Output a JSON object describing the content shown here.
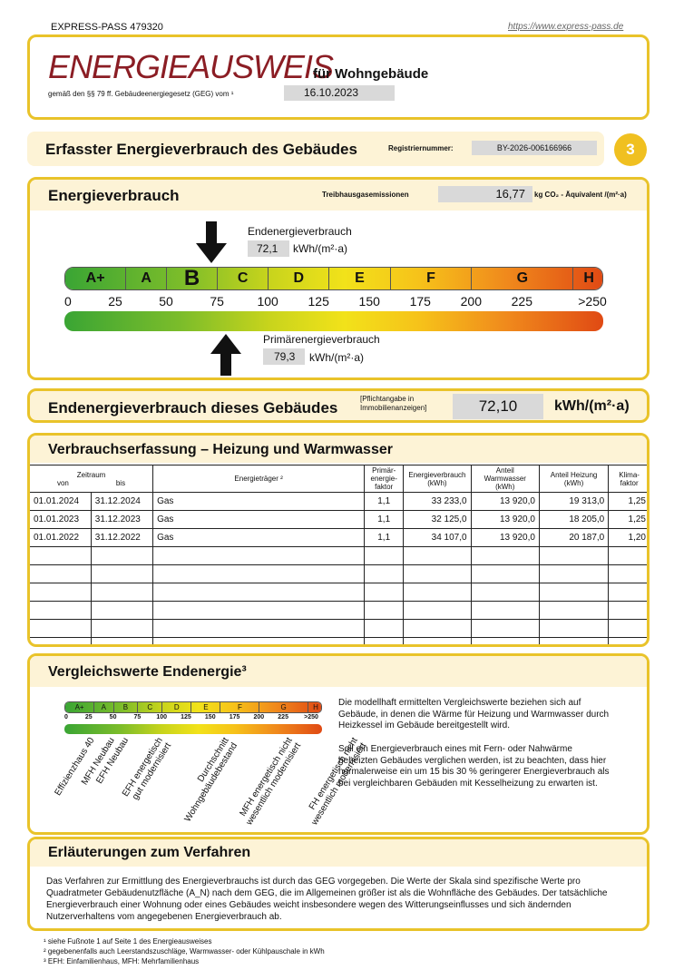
{
  "header": {
    "left": "EXPRESS-PASS 479320",
    "url": "https://www.express-pass.de"
  },
  "title": {
    "main": "ENERGIEAUSWEIS",
    "sub": "für Wohngebäude",
    "law": "gemäß den §§ 79 ff. Gebäudeenergiegesetz (GEG) vom ¹",
    "date": "16.10.2023"
  },
  "section": {
    "title": "Erfasster Energieverbrauch des Gebäudes",
    "reg_label": "Registriernummer:",
    "reg_value": "BY-2026-006166966",
    "page": "3"
  },
  "energy": {
    "title": "Energieverbrauch",
    "ghg_label": "Treibhausgasemissionen",
    "ghg_value": "16,77",
    "ghg_unit": "kg CO₂ - Äquivalent  /(m²·a)",
    "end_label": "Endenergieverbrauch",
    "end_value": "72,1",
    "unit": "kWh/(m²·a)",
    "prim_label": "Primärenergieverbrauch",
    "prim_value": "79,3",
    "end_numeric": 72.1,
    "prim_numeric": 79.3,
    "current_class": "B",
    "classes": [
      "A+",
      "A",
      "B",
      "C",
      "D",
      "E",
      "F",
      "G",
      "H"
    ],
    "ticks": [
      "0",
      "25",
      "50",
      "75",
      "100",
      "125",
      "150",
      "175",
      "200",
      "225",
      ">250"
    ]
  },
  "summary": {
    "label": "Endenergieverbrauch dieses Gebäudes",
    "note": "[Pflichtangabe in Immobilienanzeigen]",
    "value": "72,10",
    "unit": "kWh/(m²·a)"
  },
  "consumption": {
    "title": "Verbrauchserfassung – Heizung und Warmwasser",
    "headers": {
      "period": "Zeitraum",
      "from": "von",
      "to": "bis",
      "carrier": "Energieträger ²",
      "pef": "Primär-energie-faktor",
      "usage": "Energieverbrauch (kWh)",
      "ww": "Anteil Warmwasser (kWh)",
      "heat": "Anteil Heizung (kWh)",
      "climate": "Klima-faktor"
    },
    "rows": [
      [
        "01.01.2024",
        "31.12.2024",
        "Gas",
        "1,1",
        "33 233,0",
        "13 920,0",
        "19 313,0",
        "1,25"
      ],
      [
        "01.01.2023",
        "31.12.2023",
        "Gas",
        "1,1",
        "32 125,0",
        "13 920,0",
        "18 205,0",
        "1,25"
      ],
      [
        "01.01.2022",
        "31.12.2022",
        "Gas",
        "1,1",
        "34 107,0",
        "13 920,0",
        "20 187,0",
        "1,20"
      ],
      [
        "",
        "",
        "",
        "",
        "",
        "",
        "",
        ""
      ],
      [
        "",
        "",
        "",
        "",
        "",
        "",
        "",
        ""
      ],
      [
        "",
        "",
        "",
        "",
        "",
        "",
        "",
        ""
      ],
      [
        "",
        "",
        "",
        "",
        "",
        "",
        "",
        ""
      ],
      [
        "",
        "",
        "",
        "",
        "",
        "",
        "",
        ""
      ],
      [
        "",
        "",
        "",
        "",
        "",
        "",
        "",
        ""
      ]
    ]
  },
  "comparison": {
    "title": "Vergleichswerte Endenergie³",
    "labels": [
      "Effizienzhaus 40",
      "MFH Neubau",
      "EFH Neubau",
      "EFH energetisch\ngut modernisiert",
      "Durchschnitt\nWohngebäudebestand",
      "MFH energetisch nicht\nwesentlich modernisiert",
      "FH energetisch nicht\nwesentlich modernisiert"
    ],
    "p1": "Die modellhaft ermittelten Vergleichswerte beziehen sich auf Gebäude, in denen die Wärme für Heizung und Warmwasser durch Heizkessel im Gebäude bereitgestellt wird.",
    "p2": "Soll ein Energieverbrauch eines mit Fern- oder Nahwärme beheizten Gebäudes verglichen werden, ist zu beachten, dass hier normalerweise ein um 15 bis 30 % geringerer Energieverbrauch als bei vergleichbaren Gebäuden mit Kesselheizung zu erwarten ist."
  },
  "explanation": {
    "title": "Erläuterungen zum Verfahren",
    "text": "Das Verfahren zur Ermittlung des Energieverbrauchs ist durch das GEG vorgegeben. Die Werte der Skala sind spezifische Werte pro Quadratmeter Gebäudenutzfläche (A_N) nach dem GEG, die im Allgemeinen größer ist als die Wohnfläche des Gebäudes. Der tatsächliche Energieverbrauch einer Wohnung oder eines Gebäudes weicht insbesondere wegen des Witterungseinflusses und sich ändernden Nutzerverhaltens vom angegebenen Energieverbrauch ab."
  },
  "footnotes": [
    "¹ siehe Fußnote 1 auf Seite 1 des Energieausweises",
    "² gegebenenfalls auch Leerstandszuschläge, Warmwasser- oder Kühlpauschale in kWh",
    "³ EFH: Einfamilienhaus, MFH: Mehrfamilienhaus"
  ]
}
